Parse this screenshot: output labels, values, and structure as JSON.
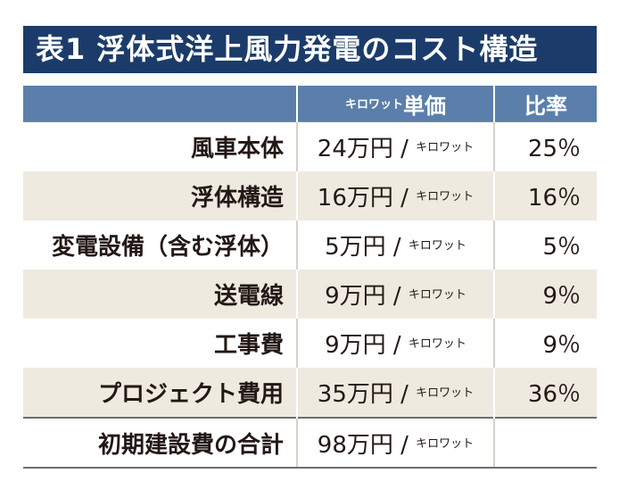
{
  "title": "表1  浮体式洋上風力発電のコスト構造",
  "table": {
    "headers": {
      "name": "",
      "price_unit": "キロワット",
      "price": "単価",
      "ratio": "比率"
    },
    "rows": [
      {
        "name": "風車本体",
        "price": "24万円 /",
        "unit": "キロワット",
        "ratio": "25％"
      },
      {
        "name": "浮体構造",
        "price": "16万円 /",
        "unit": "キロワット",
        "ratio": "16％"
      },
      {
        "name": "変電設備（含む浮体）",
        "price": "5万円 /",
        "unit": "キロワット",
        "ratio": "5％"
      },
      {
        "name": "送電線",
        "price": "9万円 /",
        "unit": "キロワット",
        "ratio": "9％"
      },
      {
        "name": "工事費",
        "price": "9万円 /",
        "unit": "キロワット",
        "ratio": "9％"
      },
      {
        "name": "プロジェクト費用",
        "price": "35万円 /",
        "unit": "キロワット",
        "ratio": "36％"
      }
    ],
    "total": {
      "name": "初期建設費の合計",
      "price": "98万円 /",
      "unit": "キロワット",
      "ratio": ""
    }
  }
}
